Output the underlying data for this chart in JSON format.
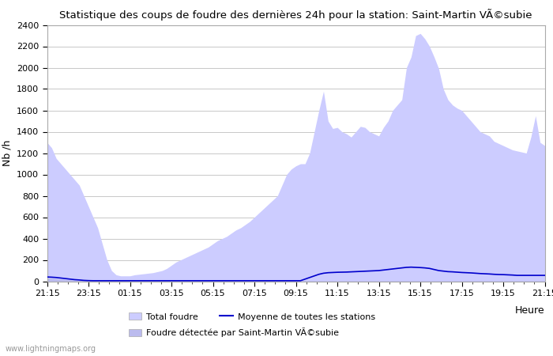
{
  "title": "Statistique des coups de foudre des dernières 24h pour la station: Saint-Martin VÃ©subie",
  "xlabel": "Heure",
  "ylabel": "Nb /h",
  "xlabels": [
    "21:15",
    "23:15",
    "01:15",
    "03:15",
    "05:15",
    "07:15",
    "09:15",
    "11:15",
    "13:15",
    "15:15",
    "17:15",
    "19:15",
    "21:15"
  ],
  "ylim": [
    0,
    2400
  ],
  "yticks": [
    0,
    200,
    400,
    600,
    800,
    1000,
    1200,
    1400,
    1600,
    1800,
    2000,
    2200,
    2400
  ],
  "background_color": "#ffffff",
  "plot_bg_color": "#ffffff",
  "grid_color": "#c8c8c8",
  "fill_total_color": "#ccccff",
  "fill_station_color": "#bbbbee",
  "line_mean_color": "#0000cc",
  "watermark": "www.lightningmaps.org",
  "legend_total": "Total foudre",
  "legend_mean": "Moyenne de toutes les stations",
  "legend_station": "Foudre détectée par Saint-Martin VÃ©subie",
  "total_foudre": [
    1300,
    1250,
    1150,
    1100,
    1050,
    1000,
    950,
    900,
    800,
    700,
    600,
    500,
    350,
    200,
    100,
    60,
    50,
    50,
    50,
    60,
    65,
    70,
    75,
    80,
    90,
    100,
    120,
    150,
    180,
    200,
    220,
    240,
    260,
    280,
    300,
    320,
    350,
    380,
    400,
    420,
    450,
    480,
    500,
    530,
    560,
    600,
    640,
    680,
    720,
    760,
    800,
    900,
    1000,
    1050,
    1080,
    1100,
    1100,
    1200,
    1400,
    1600,
    1780,
    1500,
    1430,
    1440,
    1400,
    1380,
    1350,
    1400,
    1450,
    1440,
    1400,
    1380,
    1360,
    1440,
    1500,
    1600,
    1650,
    1700,
    2000,
    2100,
    2300,
    2320,
    2270,
    2200,
    2100,
    1990,
    1800,
    1700,
    1650,
    1620,
    1600,
    1550,
    1500,
    1450,
    1400,
    1380,
    1360,
    1310,
    1290,
    1270,
    1250,
    1230,
    1220,
    1210,
    1200,
    1350,
    1550,
    1300,
    1270
  ],
  "station_foudre": [
    30,
    28,
    25,
    20,
    15,
    12,
    10,
    8,
    5,
    5,
    5,
    5,
    5,
    5,
    5,
    5,
    5,
    5,
    5,
    5,
    5,
    5,
    5,
    5,
    5,
    5,
    5,
    5,
    5,
    5,
    5,
    5,
    5,
    5,
    5,
    5,
    5,
    5,
    5,
    5,
    5,
    5,
    5,
    5,
    5,
    5,
    5,
    5,
    5,
    5,
    5,
    5,
    5,
    5,
    5,
    5,
    5,
    5,
    5,
    5,
    5,
    5,
    5,
    5,
    5,
    5,
    5,
    5,
    5,
    5,
    5,
    5,
    5,
    5,
    5,
    5,
    5,
    5,
    5,
    5,
    5,
    5,
    5,
    5,
    5,
    5,
    5,
    5,
    5,
    5,
    5,
    5,
    5,
    5,
    5,
    5,
    5,
    5,
    5,
    5,
    5,
    5,
    5,
    5,
    5,
    5,
    5,
    5,
    5
  ],
  "mean_line": [
    40,
    38,
    35,
    30,
    25,
    20,
    15,
    12,
    8,
    6,
    5,
    5,
    5,
    5,
    5,
    5,
    5,
    5,
    5,
    5,
    5,
    5,
    5,
    5,
    5,
    5,
    5,
    5,
    5,
    5,
    5,
    5,
    5,
    5,
    5,
    5,
    5,
    5,
    5,
    5,
    5,
    5,
    5,
    5,
    5,
    5,
    5,
    5,
    5,
    5,
    5,
    5,
    5,
    5,
    5,
    5,
    20,
    35,
    50,
    65,
    75,
    80,
    82,
    84,
    85,
    86,
    88,
    90,
    92,
    94,
    96,
    98,
    100,
    105,
    110,
    115,
    120,
    125,
    130,
    132,
    130,
    128,
    125,
    120,
    110,
    100,
    95,
    90,
    88,
    85,
    82,
    80,
    78,
    75,
    72,
    70,
    68,
    65,
    63,
    62,
    60,
    58,
    55,
    55,
    55,
    55,
    55,
    55,
    55
  ]
}
